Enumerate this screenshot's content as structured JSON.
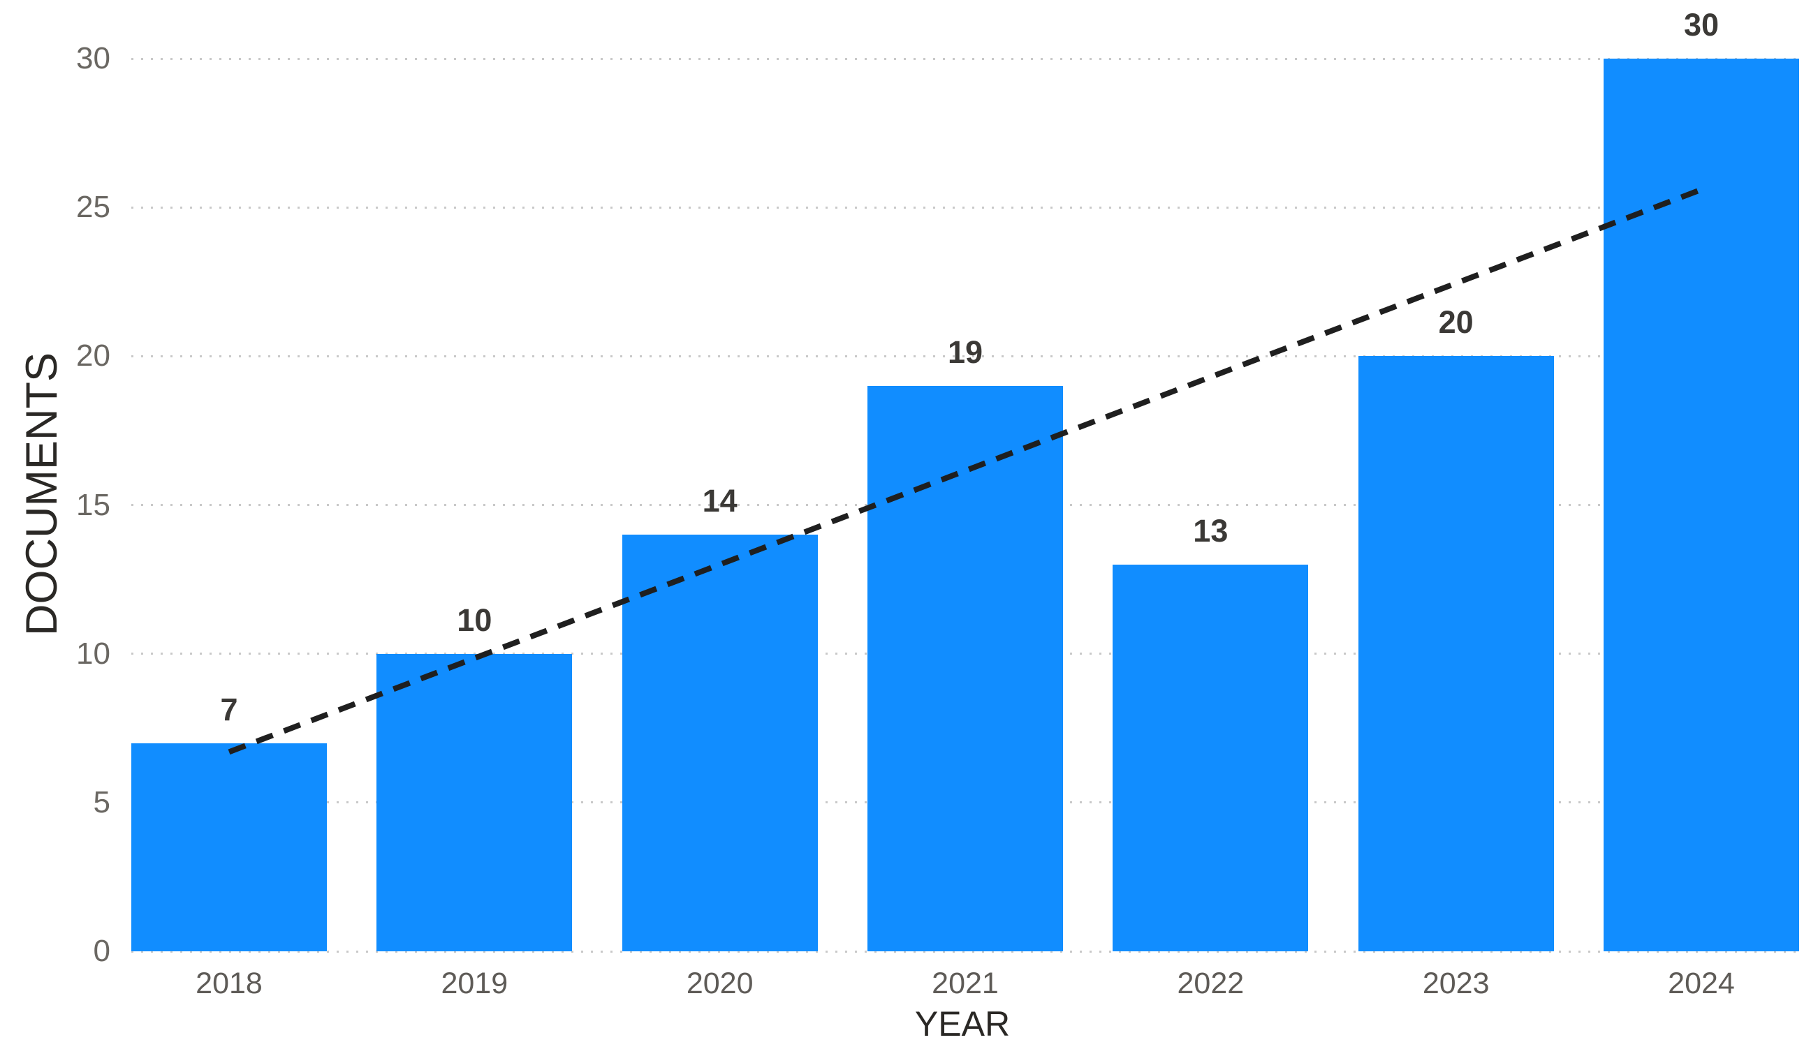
{
  "chart_data": {
    "type": "bar",
    "categories": [
      "2018",
      "2019",
      "2020",
      "2021",
      "2022",
      "2023",
      "2024"
    ],
    "values": [
      7,
      10,
      14,
      19,
      13,
      20,
      30
    ],
    "data_labels": [
      "7",
      "10",
      "14",
      "19",
      "13",
      "20",
      "30"
    ],
    "xlabel": "YEAR",
    "ylabel": "DOCUMENTS",
    "ylim": [
      0,
      30
    ],
    "yticks": [
      0,
      5,
      10,
      15,
      20,
      25,
      30
    ],
    "grid": "horizontal-dotted",
    "legend_position": "none",
    "colors": {
      "bar": "#118DFF",
      "trendline": "#1F1F1F",
      "gridline": "#C9C9C9",
      "y_tick_label": "#6A6762",
      "x_tick_label": "#5E5B57",
      "data_label": "#3B3936",
      "axis_title": "#2A2825",
      "background": "#FFFFFF"
    },
    "trendline": {
      "type": "linear",
      "style": "dashed",
      "start_value": 6.7,
      "end_value": 25.6
    }
  }
}
